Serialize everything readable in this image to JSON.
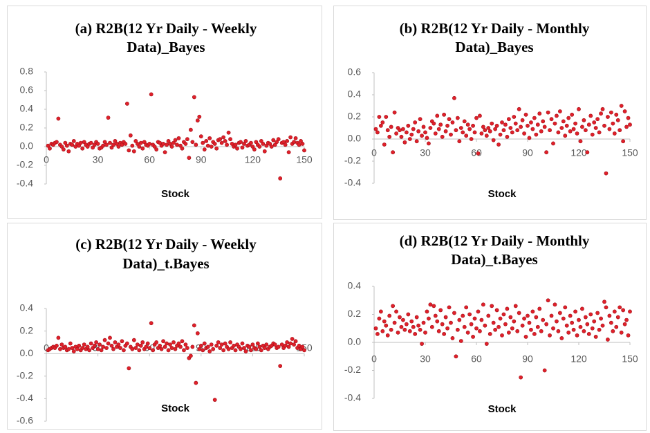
{
  "chart_data": [
    {
      "type": "scatter",
      "title": [
        "(a) R2B(12 Yr Daily - Weekly",
        "Data)_Bayes"
      ],
      "x_label": "Stock",
      "color": "#e0202a",
      "xlim": [
        0,
        150
      ],
      "xticks": [
        0,
        30,
        60,
        90,
        120,
        150
      ],
      "ylim": [
        -0.4,
        0.8
      ],
      "yticks": [
        -0.4,
        -0.2,
        {
          "value": 0,
          "label": "0.0"
        },
        0.2,
        0.4,
        0.6,
        0.8
      ],
      "x": [
        1,
        2,
        3,
        4,
        5,
        6,
        7,
        8,
        9,
        10,
        11,
        12,
        13,
        14,
        15,
        16,
        17,
        18,
        19,
        20,
        21,
        22,
        23,
        24,
        25,
        26,
        27,
        28,
        29,
        30,
        31,
        32,
        33,
        34,
        35,
        36,
        37,
        38,
        39,
        40,
        41,
        42,
        43,
        44,
        45,
        46,
        47,
        48,
        49,
        50,
        51,
        52,
        53,
        54,
        55,
        56,
        57,
        58,
        59,
        60,
        61,
        62,
        63,
        64,
        65,
        66,
        67,
        68,
        69,
        70,
        71,
        72,
        73,
        74,
        75,
        76,
        77,
        78,
        79,
        80,
        81,
        82,
        83,
        84,
        85,
        86,
        87,
        88,
        89,
        90,
        91,
        92,
        93,
        94,
        95,
        96,
        97,
        98,
        99,
        100,
        101,
        102,
        103,
        104,
        105,
        106,
        107,
        108,
        109,
        110,
        111,
        112,
        113,
        114,
        115,
        116,
        117,
        118,
        119,
        120,
        121,
        122,
        123,
        124,
        125,
        126,
        127,
        128,
        129,
        130,
        131,
        132,
        133,
        134,
        135,
        136,
        137,
        138,
        139,
        140,
        141,
        142,
        143,
        144,
        145,
        146,
        147,
        148,
        149,
        150
      ],
      "values": [
        0.01,
        -0.02,
        0.03,
        0.02,
        0.04,
        0.05,
        0.3,
        0.02,
        0.0,
        -0.03,
        0.04,
        0.01,
        -0.05,
        0.03,
        0.02,
        0.06,
        0.0,
        0.03,
        0.01,
        0.04,
        -0.02,
        0.05,
        0.02,
        0.0,
        0.03,
        0.04,
        -0.01,
        0.02,
        0.05,
        0.03,
        -0.02,
        -0.01,
        0.01,
        0.05,
        0.02,
        0.31,
        0.04,
        -0.01,
        0.02,
        0.06,
        0.03,
        0.0,
        0.04,
        0.02,
        0.05,
        0.03,
        0.46,
        -0.04,
        0.12,
        0.01,
        -0.05,
        0.06,
        0.03,
        0.0,
        0.04,
        -0.02,
        0.05,
        0.02,
        0.01,
        0.03,
        0.56,
        0.02,
        0.0,
        -0.03,
        0.05,
        0.04,
        0.01,
        0.03,
        -0.06,
        0.02,
        0.06,
        0.03,
        0.0,
        0.04,
        0.07,
        0.02,
        0.09,
        0.01,
        -0.02,
        0.05,
        0.03,
        0.08,
        -0.12,
        0.18,
        0.05,
        0.53,
        0.02,
        0.28,
        0.32,
        0.11,
        0.04,
        -0.03,
        0.06,
        0.01,
        0.09,
        0.0,
        0.05,
        0.03,
        -0.02,
        0.07,
        0.08,
        0.04,
        0.1,
        0.06,
        0.02,
        0.15,
        0.08,
        0.03,
        0.0,
        0.02,
        -0.02,
        0.04,
        0.05,
        -0.01,
        0.03,
        0.06,
        0.01,
        0.02,
        0.04,
        0.0,
        -0.03,
        0.05,
        0.02,
        0.0,
        0.06,
        0.03,
        -0.05,
        0.01,
        0.04,
        0.03,
        0.0,
        0.07,
        0.02,
        0.05,
        0.08,
        -0.34,
        0.04,
        0.05,
        0.02,
        0.06,
        -0.06,
        0.1,
        0.03,
        0.05,
        0.09,
        0.04,
        0.02,
        0.06,
        0.03,
        -0.04
      ]
    },
    {
      "type": "scatter",
      "title": [
        "(b) R2B(12 Yr Daily - Monthly",
        "Data)_Bayes"
      ],
      "x_label": "Stock",
      "color": "#e0202a",
      "xlim": [
        0,
        150
      ],
      "xticks": [
        0,
        30,
        60,
        90,
        120,
        150
      ],
      "ylim": [
        -0.4,
        0.6
      ],
      "yticks": [
        -0.4,
        -0.2,
        {
          "value": 0,
          "label": "0.0"
        },
        0.2,
        0.4,
        0.6
      ],
      "x": [
        1,
        2,
        3,
        4,
        5,
        6,
        7,
        8,
        9,
        10,
        11,
        12,
        13,
        14,
        15,
        16,
        17,
        18,
        19,
        20,
        21,
        22,
        23,
        24,
        25,
        26,
        27,
        28,
        29,
        30,
        31,
        32,
        33,
        34,
        35,
        36,
        37,
        38,
        39,
        40,
        41,
        42,
        43,
        44,
        45,
        46,
        47,
        48,
        49,
        50,
        51,
        52,
        53,
        54,
        55,
        56,
        57,
        58,
        59,
        60,
        61,
        62,
        63,
        64,
        65,
        66,
        67,
        68,
        69,
        70,
        71,
        72,
        73,
        74,
        75,
        76,
        77,
        78,
        79,
        80,
        81,
        82,
        83,
        84,
        85,
        86,
        87,
        88,
        89,
        90,
        91,
        92,
        93,
        94,
        95,
        96,
        97,
        98,
        99,
        100,
        101,
        102,
        103,
        104,
        105,
        106,
        107,
        108,
        109,
        110,
        111,
        112,
        113,
        114,
        115,
        116,
        117,
        118,
        119,
        120,
        121,
        122,
        123,
        124,
        125,
        126,
        127,
        128,
        129,
        130,
        131,
        132,
        133,
        134,
        135,
        136,
        137,
        138,
        139,
        140,
        141,
        142,
        143,
        144,
        145,
        146,
        147,
        148,
        149,
        150
      ],
      "values": [
        0.09,
        0.06,
        0.2,
        0.12,
        0.15,
        -0.05,
        0.2,
        0.08,
        0.02,
        0.11,
        -0.12,
        0.24,
        0.05,
        0.1,
        0.08,
        0.02,
        0.09,
        -0.03,
        0.06,
        0.12,
        0.0,
        0.04,
        0.09,
        0.15,
        -0.02,
        0.07,
        0.18,
        0.03,
        0.11,
        0.06,
        0.01,
        -0.04,
        0.1,
        0.16,
        0.14,
        0.05,
        0.21,
        0.09,
        0.13,
        0.02,
        0.22,
        0.07,
        0.12,
        0.18,
        0.04,
        0.15,
        0.37,
        0.08,
        0.19,
        -0.02,
        0.1,
        0.06,
        0.16,
        0.03,
        0.13,
        0.09,
        0.0,
        0.12,
        0.06,
        0.19,
        -0.13,
        0.21,
        0.05,
        0.11,
        0.08,
        0.03,
        0.1,
        0.07,
        0.14,
        -0.01,
        0.09,
        0.12,
        -0.05,
        0.04,
        0.15,
        0.08,
        0.13,
        0.02,
        0.18,
        0.1,
        0.06,
        0.2,
        0.14,
        0.08,
        0.27,
        0.11,
        0.17,
        0.05,
        0.22,
        0.12,
        0.01,
        0.15,
        0.09,
        0.19,
        0.04,
        0.13,
        0.23,
        0.07,
        0.16,
        0.11,
        -0.12,
        0.24,
        0.08,
        0.18,
        -0.04,
        0.14,
        0.21,
        0.06,
        0.25,
        0.1,
        0.16,
        0.03,
        0.12,
        0.19,
        0.07,
        0.22,
        0.09,
        0.14,
        0.05,
        0.27,
        -0.02,
        0.11,
        0.17,
        0.08,
        -0.12,
        0.13,
        0.21,
        0.04,
        0.15,
        0.1,
        0.18,
        0.06,
        0.23,
        0.27,
        0.12,
        -0.31,
        0.2,
        0.09,
        0.24,
        0.14,
        0.05,
        0.22,
        0.17,
        0.08,
        0.3,
        -0.02,
        0.25,
        0.11,
        0.19,
        0.13
      ]
    },
    {
      "type": "scatter",
      "title": [
        "(c) R2B(12 Yr Daily - Weekly",
        "Data)_t.Bayes"
      ],
      "x_label": "Stock",
      "color": "#e0202a",
      "xlim": [
        0,
        150
      ],
      "xticks": [
        0,
        30,
        60,
        90,
        120,
        150
      ],
      "ylim": [
        -0.6,
        0.4
      ],
      "yticks": [
        -0.6,
        -0.4,
        -0.2,
        {
          "value": 0,
          "label": "0.0"
        },
        0.2,
        0.4
      ],
      "x": [
        1,
        2,
        3,
        4,
        5,
        6,
        7,
        8,
        9,
        10,
        11,
        12,
        13,
        14,
        15,
        16,
        17,
        18,
        19,
        20,
        21,
        22,
        23,
        24,
        25,
        26,
        27,
        28,
        29,
        30,
        31,
        32,
        33,
        34,
        35,
        36,
        37,
        38,
        39,
        40,
        41,
        42,
        43,
        44,
        45,
        46,
        47,
        48,
        49,
        50,
        51,
        52,
        53,
        54,
        55,
        56,
        57,
        58,
        59,
        60,
        61,
        62,
        63,
        64,
        65,
        66,
        67,
        68,
        69,
        70,
        71,
        72,
        73,
        74,
        75,
        76,
        77,
        78,
        79,
        80,
        81,
        82,
        83,
        84,
        85,
        86,
        87,
        88,
        89,
        90,
        91,
        92,
        93,
        94,
        95,
        96,
        97,
        98,
        99,
        100,
        101,
        102,
        103,
        104,
        105,
        106,
        107,
        108,
        109,
        110,
        111,
        112,
        113,
        114,
        115,
        116,
        117,
        118,
        119,
        120,
        121,
        122,
        123,
        124,
        125,
        126,
        127,
        128,
        129,
        130,
        131,
        132,
        133,
        134,
        135,
        136,
        137,
        138,
        139,
        140,
        141,
        142,
        143,
        144,
        145,
        146,
        147,
        148,
        149,
        150
      ],
      "values": [
        0.03,
        0.04,
        0.05,
        0.06,
        0.05,
        0.07,
        0.14,
        0.04,
        0.08,
        0.05,
        0.06,
        0.03,
        0.04,
        0.09,
        0.05,
        0.02,
        0.06,
        0.04,
        0.07,
        0.03,
        0.05,
        0.08,
        0.04,
        0.06,
        0.03,
        0.09,
        0.05,
        0.07,
        0.1,
        0.04,
        0.08,
        0.03,
        0.06,
        0.12,
        0.05,
        0.09,
        0.14,
        0.07,
        0.04,
        0.1,
        0.06,
        0.08,
        0.05,
        0.11,
        0.03,
        0.07,
        0.09,
        -0.13,
        0.06,
        0.04,
        0.12,
        0.05,
        0.08,
        0.03,
        0.07,
        0.1,
        0.04,
        0.06,
        0.09,
        0.05,
        0.27,
        0.03,
        0.08,
        0.1,
        0.05,
        0.07,
        0.04,
        0.11,
        0.06,
        0.09,
        0.03,
        0.08,
        0.05,
        0.1,
        0.04,
        0.07,
        0.09,
        0.06,
        0.11,
        0.03,
        0.08,
        0.05,
        -0.04,
        -0.02,
        0.06,
        0.25,
        -0.26,
        0.18,
        0.04,
        0.07,
        0.03,
        0.09,
        0.05,
        0.06,
        0.02,
        0.08,
        0.04,
        -0.41,
        0.07,
        0.1,
        0.05,
        0.08,
        0.03,
        0.09,
        0.06,
        0.04,
        0.1,
        0.05,
        0.07,
        0.03,
        0.08,
        0.06,
        0.04,
        0.09,
        0.05,
        0.02,
        0.07,
        0.06,
        0.03,
        0.08,
        0.05,
        0.04,
        0.09,
        0.06,
        0.03,
        0.07,
        0.05,
        0.08,
        0.04,
        0.06,
        0.07,
        0.09,
        0.08,
        0.05,
        0.06,
        -0.11,
        0.08,
        0.05,
        0.07,
        0.1,
        0.06,
        0.09,
        0.13,
        0.08,
        0.11,
        0.05,
        0.07,
        0.04,
        0.06,
        0.03
      ]
    },
    {
      "type": "scatter",
      "title": [
        "(d) R2B(12 Yr Daily - Monthly",
        "Data)_t.Bayes"
      ],
      "x_label": "Stock",
      "color": "#e0202a",
      "xlim": [
        0,
        150
      ],
      "xticks": [
        0,
        30,
        60,
        90,
        120,
        150
      ],
      "ylim": [
        -0.4,
        0.4
      ],
      "yticks": [
        -0.4,
        -0.2,
        {
          "value": 0,
          "label": "0.0"
        },
        0.2,
        0.4
      ],
      "x": [
        1,
        2,
        3,
        4,
        5,
        6,
        7,
        8,
        9,
        10,
        11,
        12,
        13,
        14,
        15,
        16,
        17,
        18,
        19,
        20,
        21,
        22,
        23,
        24,
        25,
        26,
        27,
        28,
        29,
        30,
        31,
        32,
        33,
        34,
        35,
        36,
        37,
        38,
        39,
        40,
        41,
        42,
        43,
        44,
        45,
        46,
        47,
        48,
        49,
        50,
        51,
        52,
        53,
        54,
        55,
        56,
        57,
        58,
        59,
        60,
        61,
        62,
        63,
        64,
        65,
        66,
        67,
        68,
        69,
        70,
        71,
        72,
        73,
        74,
        75,
        76,
        77,
        78,
        79,
        80,
        81,
        82,
        83,
        84,
        85,
        86,
        87,
        88,
        89,
        90,
        91,
        92,
        93,
        94,
        95,
        96,
        97,
        98,
        99,
        100,
        101,
        102,
        103,
        104,
        105,
        106,
        107,
        108,
        109,
        110,
        111,
        112,
        113,
        114,
        115,
        116,
        117,
        118,
        119,
        120,
        121,
        122,
        123,
        124,
        125,
        126,
        127,
        128,
        129,
        130,
        131,
        132,
        133,
        134,
        135,
        136,
        137,
        138,
        139,
        140,
        141,
        142,
        143,
        144,
        145,
        146,
        147,
        148,
        149,
        150
      ],
      "values": [
        0.1,
        0.06,
        0.17,
        0.22,
        0.08,
        0.15,
        0.12,
        0.05,
        0.19,
        0.09,
        0.26,
        0.14,
        0.22,
        0.07,
        0.18,
        0.11,
        0.16,
        0.09,
        0.13,
        0.2,
        0.08,
        0.15,
        0.11,
        0.06,
        0.18,
        0.12,
        0.09,
        -0.01,
        0.14,
        0.07,
        0.22,
        0.17,
        0.27,
        0.11,
        0.26,
        0.19,
        0.15,
        0.08,
        0.23,
        0.13,
        0.06,
        0.18,
        0.1,
        0.25,
        0.14,
        0.03,
        0.21,
        -0.1,
        0.09,
        0.16,
        0.01,
        0.19,
        0.11,
        0.25,
        0.07,
        0.2,
        0.13,
        0.04,
        0.17,
        0.1,
        0.22,
        0.08,
        0.16,
        0.27,
        0.12,
        -0.01,
        0.19,
        0.06,
        0.26,
        0.14,
        0.09,
        0.23,
        0.11,
        0.17,
        0.05,
        0.2,
        0.13,
        0.24,
        0.07,
        0.18,
        0.1,
        0.15,
        0.26,
        0.08,
        0.21,
        -0.25,
        0.12,
        0.17,
        0.04,
        0.19,
        0.14,
        0.09,
        0.22,
        0.06,
        0.18,
        0.11,
        0.24,
        0.08,
        0.16,
        -0.2,
        0.13,
        0.3,
        0.05,
        0.19,
        0.1,
        0.27,
        0.15,
        0.08,
        0.21,
        0.03,
        0.17,
        0.25,
        0.12,
        0.07,
        0.19,
        0.14,
        0.09,
        0.22,
        0.05,
        0.16,
        0.11,
        0.24,
        0.08,
        0.18,
        0.13,
        0.06,
        0.2,
        0.1,
        0.15,
        0.04,
        0.21,
        0.09,
        0.17,
        0.12,
        0.29,
        0.25,
        0.02,
        0.19,
        0.14,
        0.08,
        0.22,
        0.11,
        0.18,
        0.25,
        0.07,
        0.23,
        0.13,
        0.16,
        0.05,
        0.22
      ]
    }
  ]
}
